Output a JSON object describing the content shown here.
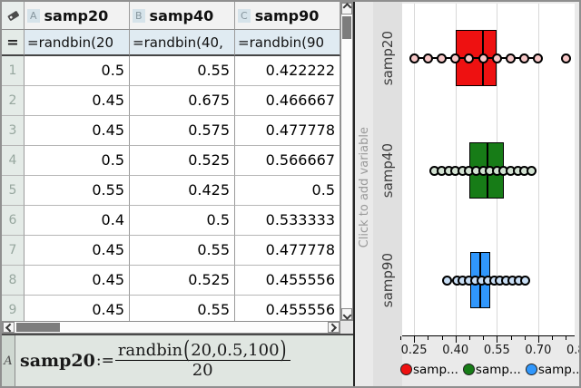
{
  "spreadsheet": {
    "corner_icon": "tag-icon",
    "equals_symbol": "=",
    "columns": [
      {
        "letter": "A",
        "name": "samp20",
        "formula": "=randbin(20"
      },
      {
        "letter": "B",
        "name": "samp40",
        "formula": "=randbin(40,"
      },
      {
        "letter": "C",
        "name": "samp90",
        "formula": "=randbin(90"
      }
    ],
    "rows": [
      {
        "n": "1",
        "a": "0.5",
        "b": "0.55",
        "c": "0.422222"
      },
      {
        "n": "2",
        "a": "0.45",
        "b": "0.675",
        "c": "0.466667"
      },
      {
        "n": "3",
        "a": "0.45",
        "b": "0.575",
        "c": "0.477778"
      },
      {
        "n": "4",
        "a": "0.5",
        "b": "0.525",
        "c": "0.566667"
      },
      {
        "n": "5",
        "a": "0.55",
        "b": "0.425",
        "c": "0.5"
      },
      {
        "n": "6",
        "a": "0.4",
        "b": "0.5",
        "c": "0.533333"
      },
      {
        "n": "7",
        "a": "0.45",
        "b": "0.55",
        "c": "0.477778"
      },
      {
        "n": "8",
        "a": "0.45",
        "b": "0.525",
        "c": "0.455556"
      },
      {
        "n": "9",
        "a": "0.45",
        "b": "0.55",
        "c": "0.455556"
      }
    ]
  },
  "formula_bar": {
    "cell_ref": "A",
    "lhs": "samp20",
    "assign": ":=",
    "numerator": "randbin(20,0.5,100)",
    "denominator": "20"
  },
  "plot_panel": {
    "add_variable_label": "Click to add variable",
    "legend": [
      {
        "label": "samp...",
        "color": "#ee1111"
      },
      {
        "label": "samp...",
        "color": "#177c17"
      },
      {
        "label": "samp...",
        "color": "#3097fc"
      }
    ]
  },
  "chart_data": {
    "type": "boxplot-horizontal-with-dots",
    "categories": [
      "samp20",
      "samp40",
      "samp90"
    ],
    "xlim": [
      0.207,
      0.832
    ],
    "xticks_major": [
      0.25,
      0.4,
      0.55,
      0.7,
      0.85
    ],
    "xtick_labels": [
      "0.25",
      "0.40",
      "0.55",
      "0.70",
      "0.85"
    ],
    "minor_tick_step": 0.05,
    "minor_tick_range": [
      0.2,
      0.8
    ],
    "grid": "vertical-at-major-ticks",
    "legend_position": "bottom",
    "series": [
      {
        "name": "samp20",
        "color": "#ee1111",
        "dot_fill": "#f8c8c8",
        "q1": 0.4,
        "median": 0.5,
        "q3": 0.55,
        "whisker_min": 0.25,
        "whisker_max": 0.7,
        "points": [
          0.25,
          0.3,
          0.35,
          0.4,
          0.45,
          0.5,
          0.55,
          0.6,
          0.65,
          0.7
        ],
        "outliers": [
          0.8
        ]
      },
      {
        "name": "samp40",
        "color": "#177c17",
        "dot_fill": "#d2e2d2",
        "q1": 0.45,
        "median": 0.5175,
        "q3": 0.575,
        "whisker_min": 0.325,
        "whisker_max": 0.675,
        "points": [
          0.325,
          0.35,
          0.375,
          0.4,
          0.425,
          0.45,
          0.475,
          0.5,
          0.525,
          0.55,
          0.575,
          0.6,
          0.625,
          0.65,
          0.675
        ],
        "outliers": []
      },
      {
        "name": "samp90",
        "color": "#3097fc",
        "dot_fill": "#c8def5",
        "q1": 0.455,
        "median": 0.49,
        "q3": 0.525,
        "whisker_min": 0.405,
        "whisker_max": 0.655,
        "points": [
          0.405,
          0.427,
          0.45,
          0.472,
          0.495,
          0.517,
          0.54,
          0.562,
          0.585,
          0.607,
          0.63,
          0.652
        ],
        "outliers": [
          0.37
        ]
      }
    ]
  }
}
